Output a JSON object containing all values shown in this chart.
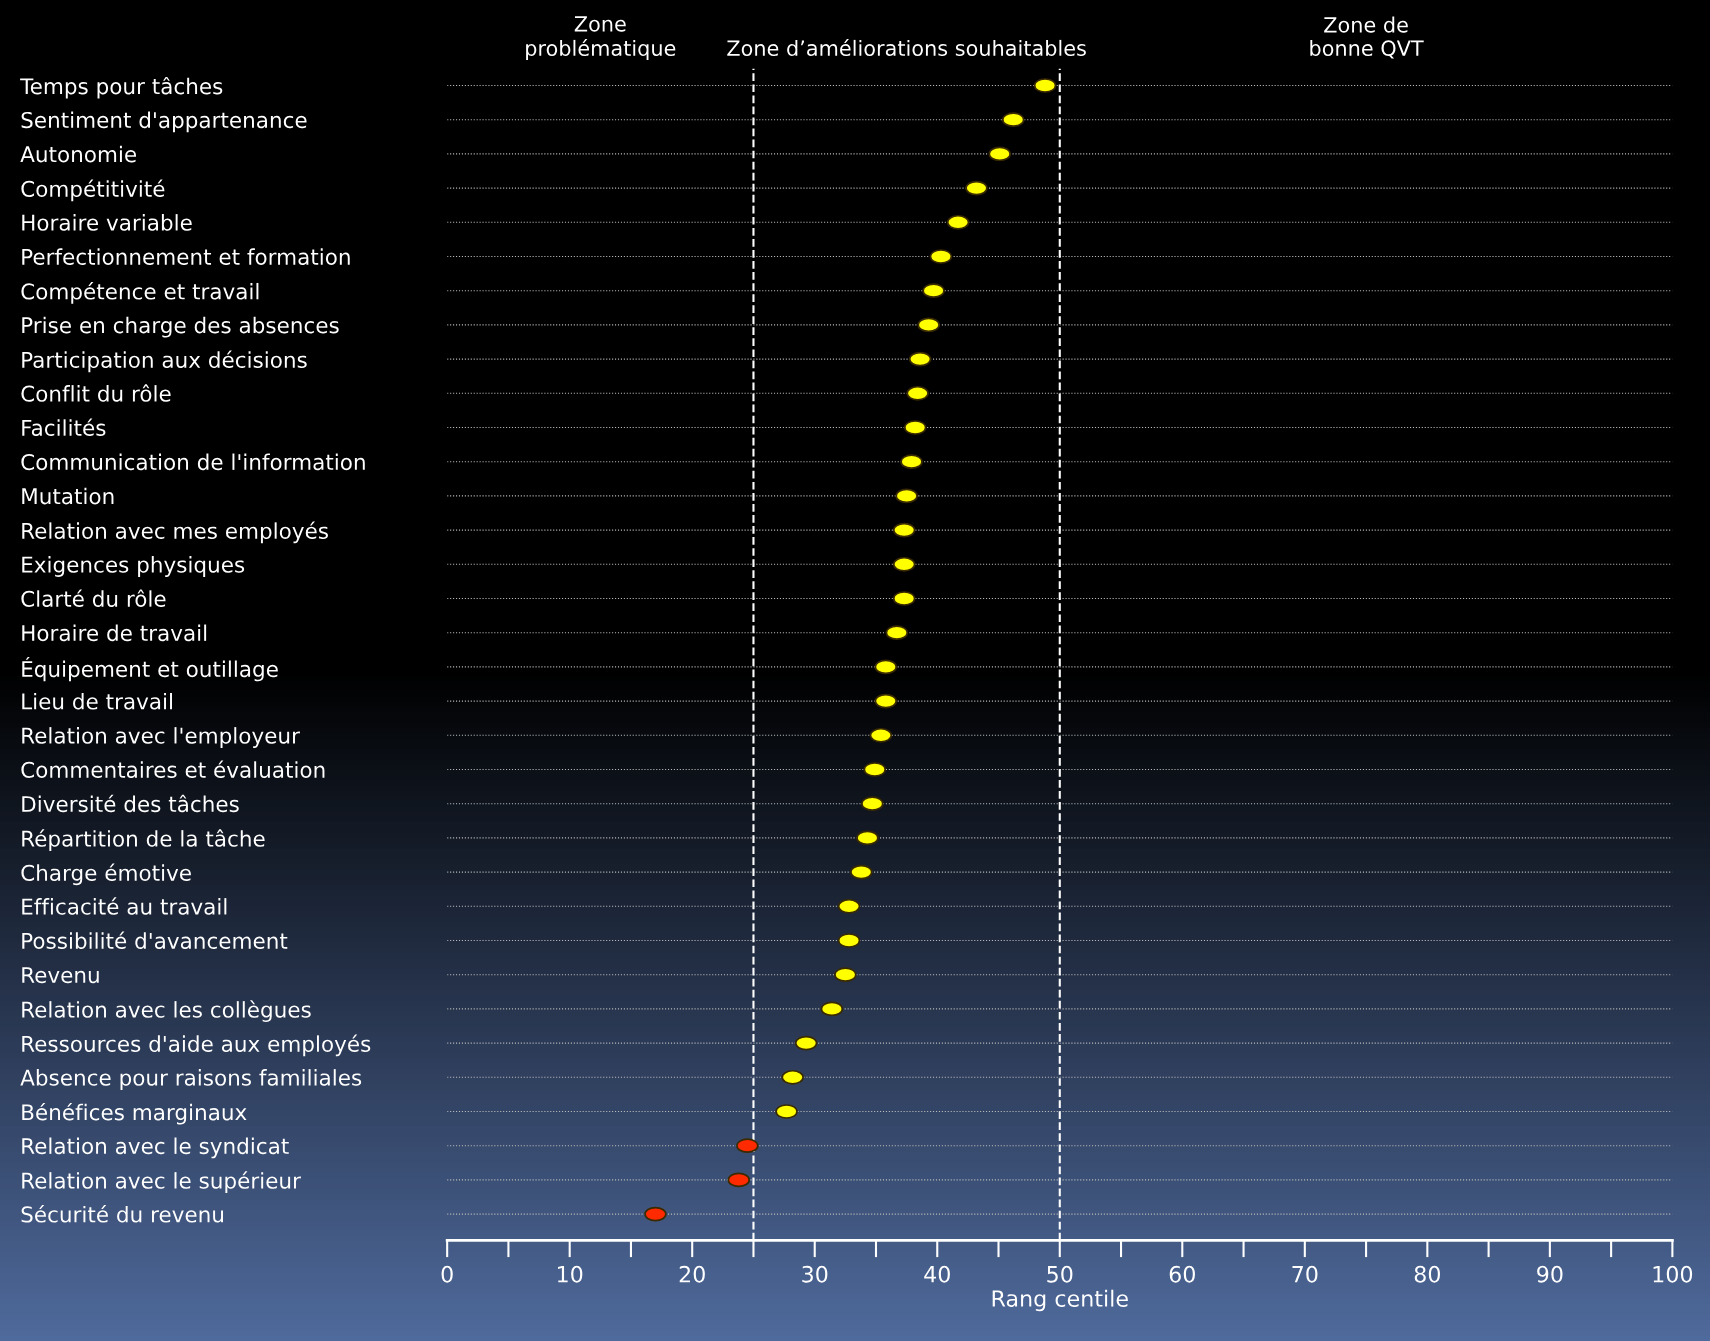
{
  "chart_data": {
    "type": "scatter",
    "orientation": "horizontal",
    "categories": [
      "Temps pour tâches",
      "Sentiment d'appartenance",
      "Autonomie",
      "Compétitivité",
      "Horaire variable",
      "Perfectionnement et formation",
      "Compétence et travail",
      "Prise en charge des absences",
      "Participation aux décisions",
      "Conflit du rôle",
      "Facilités",
      "Communication de l'information",
      "Mutation",
      "Relation avec mes employés",
      "Exigences physiques",
      "Clarté du rôle",
      "Horaire de travail",
      "Équipement et outillage",
      "Lieu de travail",
      "Relation avec l'employeur",
      "Commentaires et évaluation",
      "Diversité des tâches",
      "Répartition de la tâche",
      "Charge émotive",
      "Efficacité au travail",
      "Possibilité d'avancement",
      "Revenu",
      "Relation avec les collègues",
      "Ressources d'aide aux employés",
      "Absence pour raisons familiales",
      "Bénéfices marginaux",
      "Relation avec le syndicat",
      "Relation avec le supérieur",
      "Sécurité du revenu"
    ],
    "values": [
      48.8,
      46.2,
      45.1,
      43.2,
      41.7,
      40.3,
      39.7,
      39.3,
      38.6,
      38.4,
      38.2,
      37.9,
      37.5,
      37.3,
      37.3,
      37.3,
      36.7,
      35.8,
      35.8,
      35.4,
      34.9,
      34.7,
      34.3,
      33.8,
      32.8,
      32.8,
      32.5,
      31.4,
      29.3,
      28.2,
      27.7,
      24.5,
      23.8,
      17.0
    ],
    "colors": [
      "#ffff00",
      "#ffff00",
      "#ffff00",
      "#ffff00",
      "#ffff00",
      "#ffff00",
      "#ffff00",
      "#ffff00",
      "#ffff00",
      "#ffff00",
      "#ffff00",
      "#ffff00",
      "#ffff00",
      "#ffff00",
      "#ffff00",
      "#ffff00",
      "#ffff00",
      "#ffff00",
      "#ffff00",
      "#ffff00",
      "#ffff00",
      "#ffff00",
      "#ffff00",
      "#ffff00",
      "#ffff00",
      "#ffff00",
      "#ffff00",
      "#ffff00",
      "#ffff00",
      "#ffff00",
      "#ffff00",
      "#ff2a00",
      "#ff2a00",
      "#ff2a00"
    ],
    "xlim": [
      0,
      100
    ],
    "xticks": [
      0,
      10,
      20,
      30,
      40,
      50,
      60,
      70,
      80,
      90,
      100
    ],
    "xlabel": "Rang centile",
    "ref_lines": [
      {
        "axis": "x",
        "value": 25,
        "label": null,
        "color": "#ffffff",
        "line_style": "dashed"
      },
      {
        "axis": "x",
        "value": 50,
        "label": null,
        "color": "#ffffff",
        "line_style": "dashed"
      }
    ],
    "annotations": [
      "Zone\nproblématique",
      "Zone d’améliorations souhaitables",
      "Zone de\nbonne QVT"
    ],
    "grid": "y",
    "marker": "circle",
    "legend": false
  }
}
